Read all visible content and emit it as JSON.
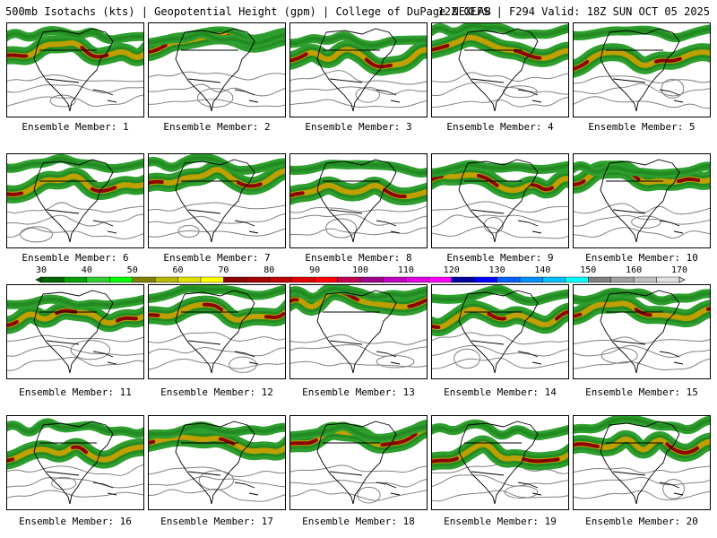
{
  "header": {
    "left": "500mb Isotachs (kts) | Geopotential Height (gpm) | College of DuPage NEXLAB",
    "right": "12Z GEFS | F294 Valid: 18Z SUN OCT 05 2025"
  },
  "colorbar": {
    "labels": [
      "30",
      "40",
      "50",
      "60",
      "70",
      "80",
      "90",
      "100",
      "110",
      "120",
      "130",
      "140",
      "150",
      "160",
      "170"
    ],
    "colors": [
      "#006400",
      "#00a000",
      "#32cd32",
      "#00ff00",
      "#808000",
      "#b8b800",
      "#e0e000",
      "#ffff00",
      "#8b0000",
      "#a00000",
      "#c00000",
      "#e00000",
      "#ff0000",
      "#c00050",
      "#a0008a",
      "#c000c0",
      "#e000e0",
      "#ff00ff",
      "#0000a0",
      "#0000ff",
      "#0060ff",
      "#0090ff",
      "#00c0ff",
      "#00ffff",
      "#808080",
      "#a0a0a0",
      "#c0c0c0",
      "#e0e0e0"
    ]
  },
  "members": [
    {
      "label": "Ensemble Member: 1"
    },
    {
      "label": "Ensemble Member: 2"
    },
    {
      "label": "Ensemble Member: 3"
    },
    {
      "label": "Ensemble Member: 4"
    },
    {
      "label": "Ensemble Member: 5"
    },
    {
      "label": "Ensemble Member: 6"
    },
    {
      "label": "Ensemble Member: 7"
    },
    {
      "label": "Ensemble Member: 8"
    },
    {
      "label": "Ensemble Member: 9"
    },
    {
      "label": "Ensemble Member: 10"
    },
    {
      "label": "Ensemble Member: 11"
    },
    {
      "label": "Ensemble Member: 12"
    },
    {
      "label": "Ensemble Member: 13"
    },
    {
      "label": "Ensemble Member: 14"
    },
    {
      "label": "Ensemble Member: 15"
    },
    {
      "label": "Ensemble Member: 16"
    },
    {
      "label": "Ensemble Member: 17"
    },
    {
      "label": "Ensemble Member: 18"
    },
    {
      "label": "Ensemble Member: 19"
    },
    {
      "label": "Ensemble Member: 20"
    }
  ],
  "map_colors": {
    "jet_weak": "#2e9e2e",
    "jet_mid": "#228b22",
    "jet_strong": "#c0a000",
    "jet_core": "#8b0000",
    "height_contour": "#808080",
    "coastline": "#000000"
  }
}
